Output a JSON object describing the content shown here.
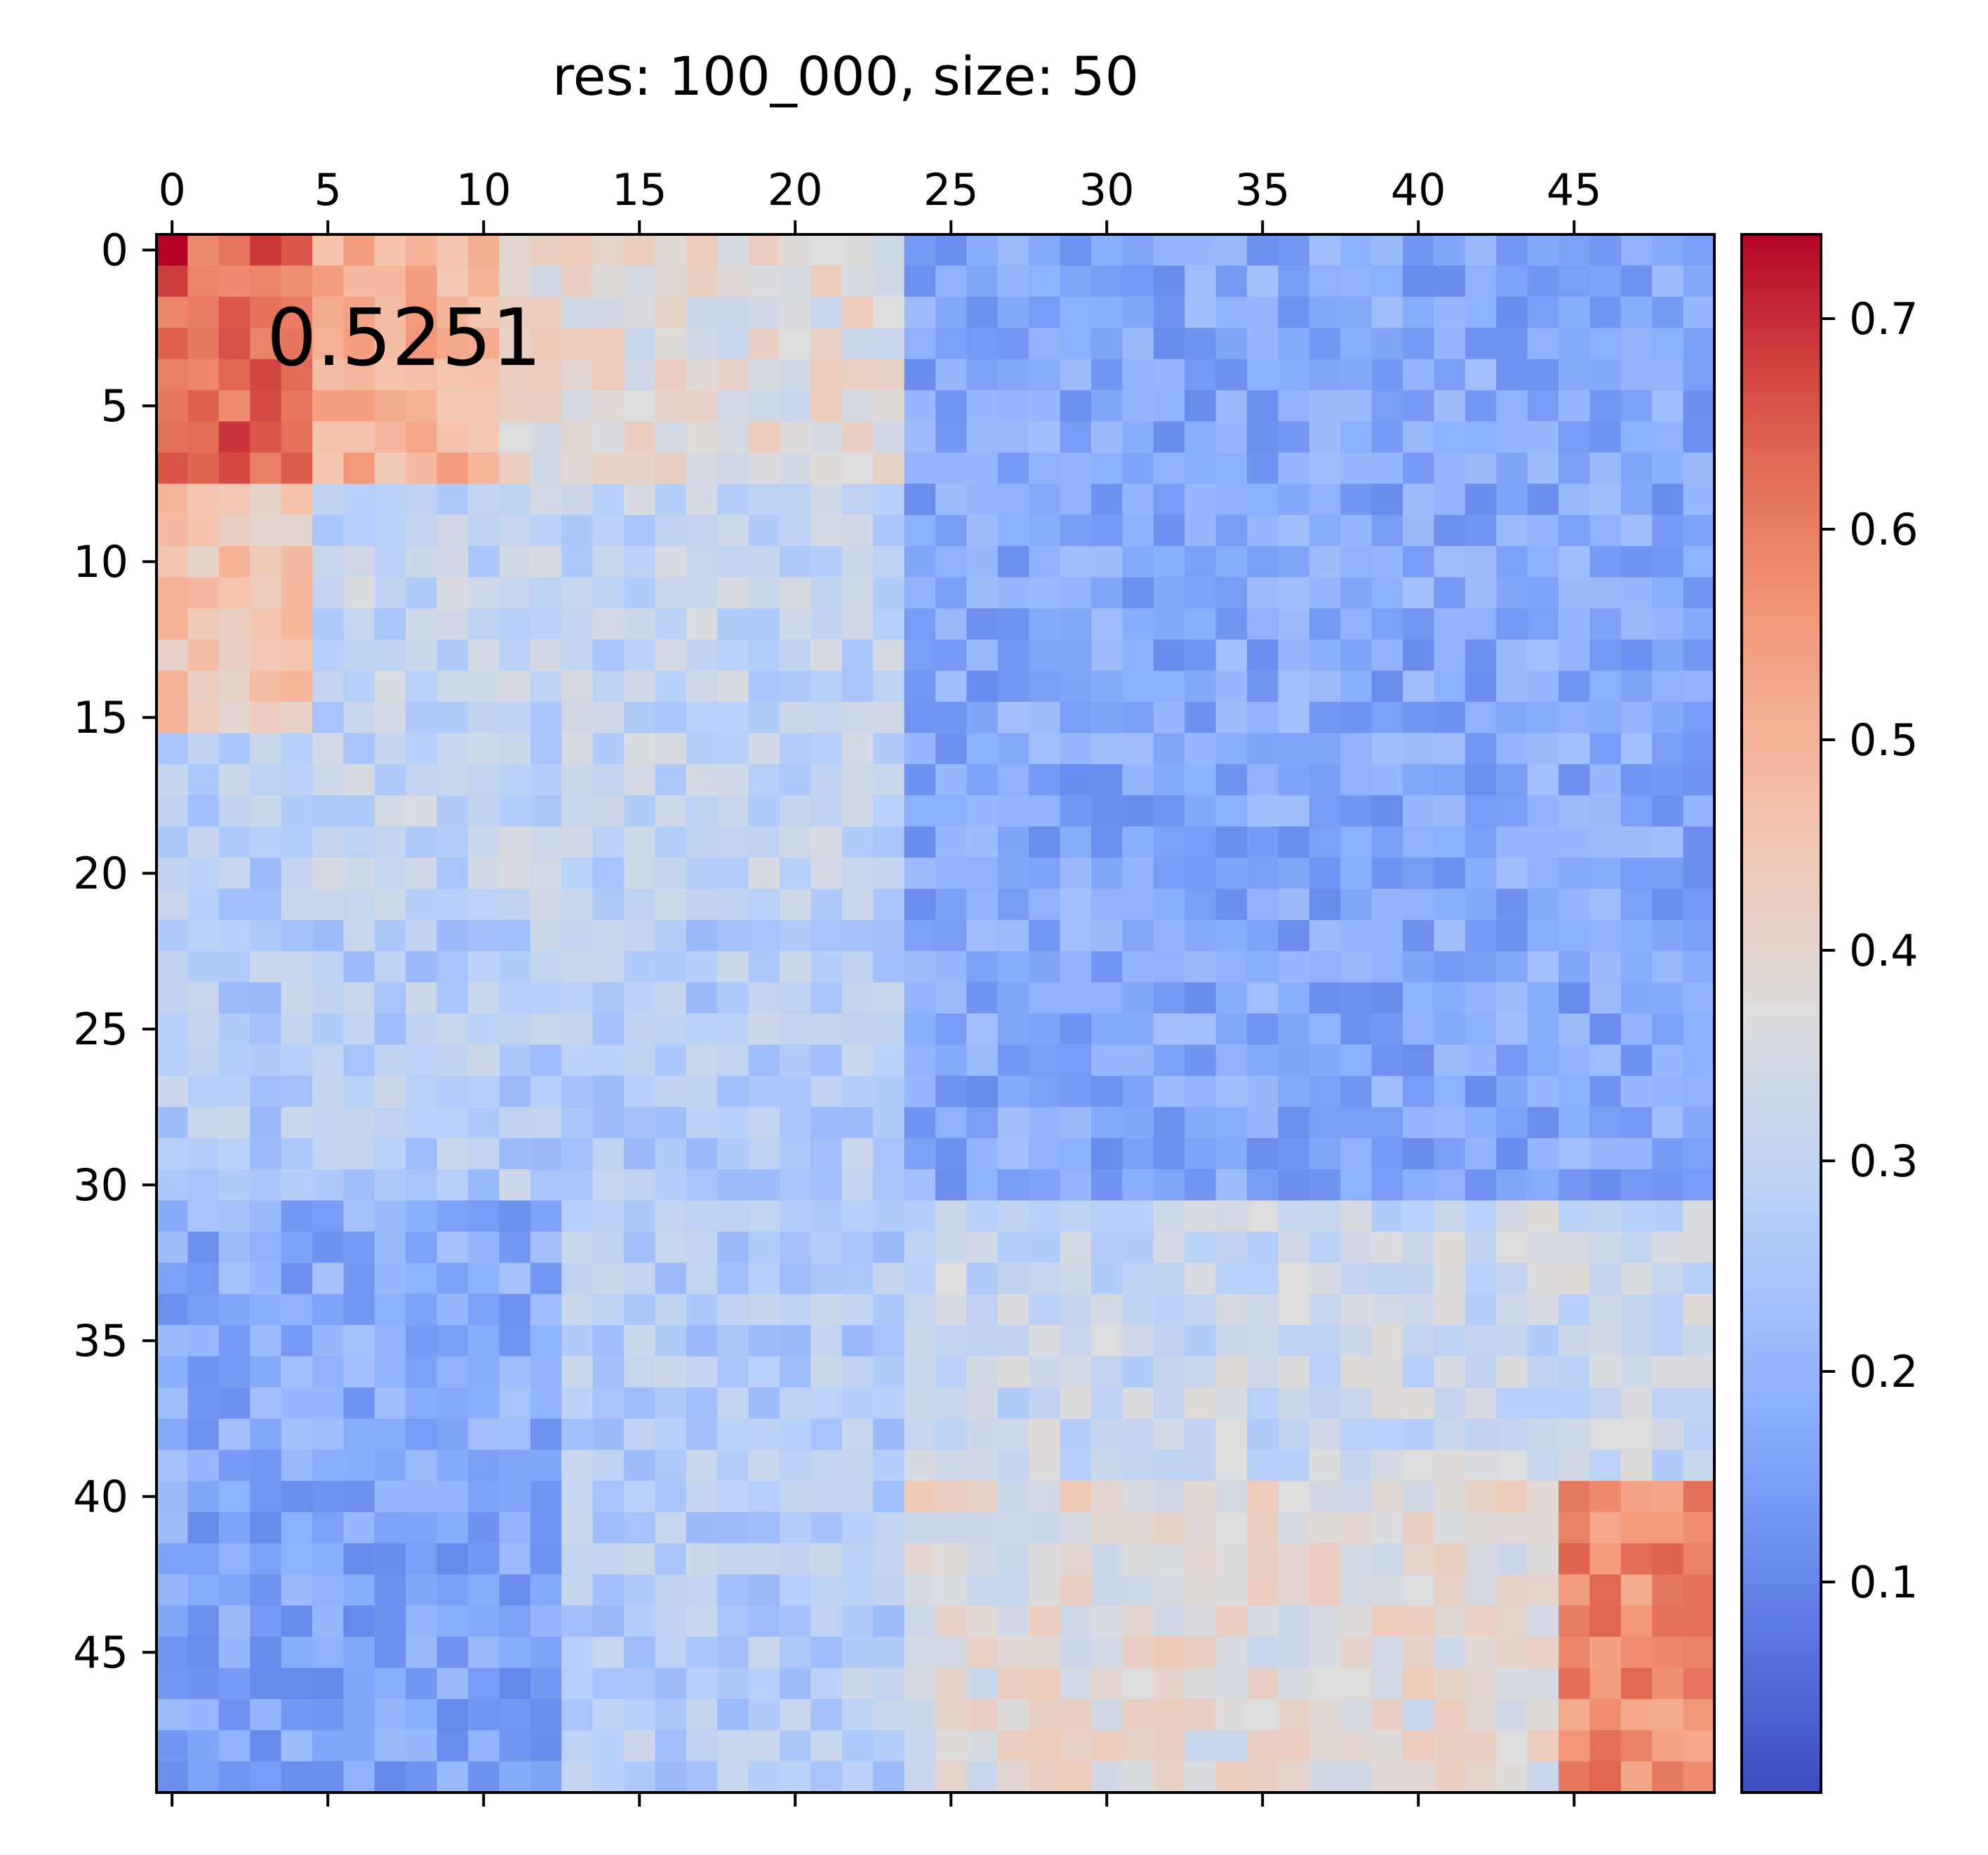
{
  "chart_data": {
    "type": "heatmap",
    "title": "res: 100_000, size: 50",
    "annotation": "0.5251",
    "rows": 50,
    "cols": 50,
    "x_ticks": [
      0,
      5,
      10,
      15,
      20,
      25,
      30,
      35,
      40,
      45
    ],
    "y_ticks": [
      0,
      5,
      10,
      15,
      20,
      25,
      30,
      35,
      40,
      45
    ],
    "x_axis_position": "top",
    "colormap": "coolwarm",
    "vmin": 0.0,
    "vmax": 0.74,
    "colorbar_ticks": [
      0.1,
      0.2,
      0.3,
      0.4,
      0.5,
      0.6,
      0.7
    ],
    "colorbar_position": "right",
    "blocks": [
      {
        "row_range": [
          0,
          8
        ],
        "col_range": [
          0,
          5
        ],
        "value": 0.63
      },
      {
        "row_range": [
          0,
          8
        ],
        "col_range": [
          5,
          11
        ],
        "value": 0.5
      },
      {
        "row_range": [
          0,
          8
        ],
        "col_range": [
          11,
          24
        ],
        "value": 0.38
      },
      {
        "row_range": [
          8,
          16
        ],
        "col_range": [
          0,
          5
        ],
        "value": 0.45
      },
      {
        "row_range": [
          8,
          22
        ],
        "col_range": [
          5,
          24
        ],
        "value": 0.3
      },
      {
        "row_range": [
          0,
          31
        ],
        "col_range": [
          24,
          50
        ],
        "value": 0.17
      },
      {
        "row_range": [
          16,
          31
        ],
        "col_range": [
          0,
          24
        ],
        "value": 0.27
      },
      {
        "row_range": [
          31,
          40
        ],
        "col_range": [
          0,
          13
        ],
        "value": 0.18
      },
      {
        "row_range": [
          40,
          50
        ],
        "col_range": [
          0,
          13
        ],
        "value": 0.16
      },
      {
        "row_range": [
          31,
          50
        ],
        "col_range": [
          13,
          24
        ],
        "value": 0.27
      },
      {
        "row_range": [
          31,
          40
        ],
        "col_range": [
          24,
          50
        ],
        "value": 0.32
      },
      {
        "row_range": [
          40,
          50
        ],
        "col_range": [
          24,
          45
        ],
        "value": 0.38
      },
      {
        "row_range": [
          40,
          50
        ],
        "col_range": [
          45,
          50
        ],
        "value": 0.58
      }
    ]
  }
}
